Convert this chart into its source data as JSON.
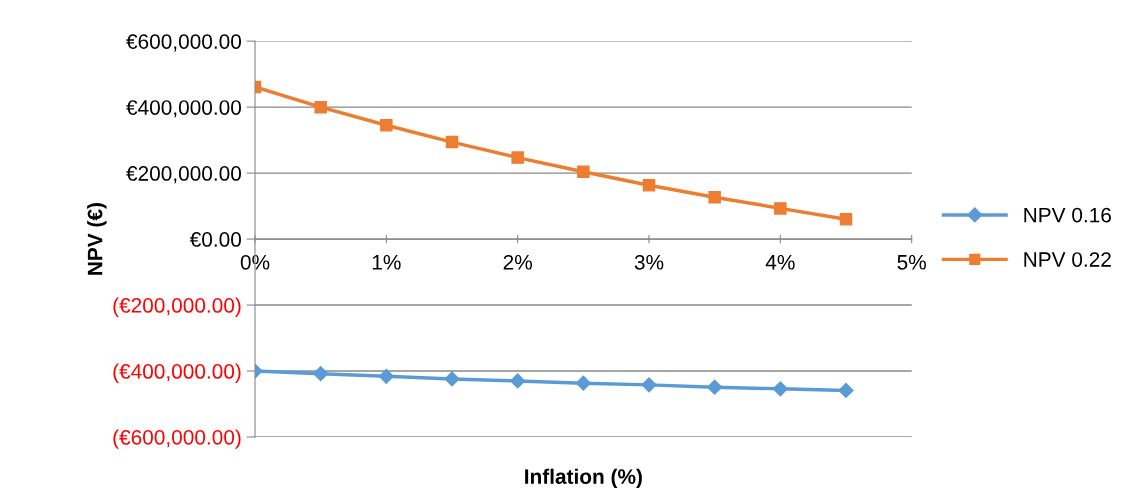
{
  "chart_data": {
    "type": "line",
    "xlabel": "Inflation (%)",
    "ylabel": "NPV (€)",
    "x": [
      0,
      0.5,
      1,
      1.5,
      2,
      2.5,
      3,
      3.5,
      4,
      4.5
    ],
    "series": [
      {
        "name": "NPV 0.16",
        "color": "#5b9bd5",
        "marker": "diamond",
        "values": [
          -400000,
          -408000,
          -416000,
          -424000,
          -430000,
          -437000,
          -442000,
          -449000,
          -454000,
          -459000
        ]
      },
      {
        "name": "NPV 0.22",
        "color": "#ed7d31",
        "marker": "square",
        "values": [
          461000,
          400000,
          345000,
          294000,
          247000,
          204000,
          163000,
          127000,
          93000,
          60000
        ]
      }
    ],
    "xlim": [
      0,
      5
    ],
    "xticks": [
      {
        "value": 0,
        "label": "0%"
      },
      {
        "value": 1,
        "label": "1%"
      },
      {
        "value": 2,
        "label": "2%"
      },
      {
        "value": 3,
        "label": "3%"
      },
      {
        "value": 4,
        "label": "4%"
      },
      {
        "value": 5,
        "label": "5%"
      }
    ],
    "ylim": [
      -600000,
      600000
    ],
    "yticks": [
      {
        "value": -600000,
        "label": "(€600,000.00)"
      },
      {
        "value": -400000,
        "label": "(€400,000.00)"
      },
      {
        "value": -200000,
        "label": "(€200,000.00)"
      },
      {
        "value": 0,
        "label": "€0.00"
      },
      {
        "value": 200000,
        "label": "€200,000.00"
      },
      {
        "value": 400000,
        "label": "€400,000.00"
      },
      {
        "value": 600000,
        "label": "€600,000.00"
      }
    ],
    "grid": "y",
    "legend": "right",
    "line_style": "solid"
  }
}
